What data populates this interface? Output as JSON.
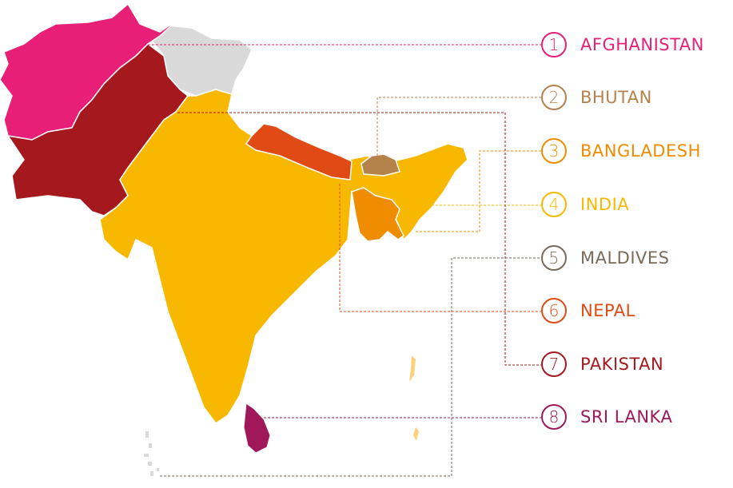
{
  "legend": [
    {
      "num": "1",
      "name": "AFGHANISTAN",
      "color": "#e81f76"
    },
    {
      "num": "2",
      "name": "BHUTAN",
      "color": "#b5824c"
    },
    {
      "num": "3",
      "name": "BANGLADESH",
      "color": "#f08c00"
    },
    {
      "num": "4",
      "name": "INDIA",
      "color": "#f9b800"
    },
    {
      "num": "5",
      "name": "MALDIVES",
      "color": "#7a6a5a"
    },
    {
      "num": "6",
      "name": "NEPAL",
      "color": "#e04a14"
    },
    {
      "num": "7",
      "name": "PAKISTAN",
      "color": "#a5191e"
    },
    {
      "num": "8",
      "name": "SRI LANKA",
      "color": "#a0185a"
    }
  ],
  "disputed_color": "#d9d9d9"
}
